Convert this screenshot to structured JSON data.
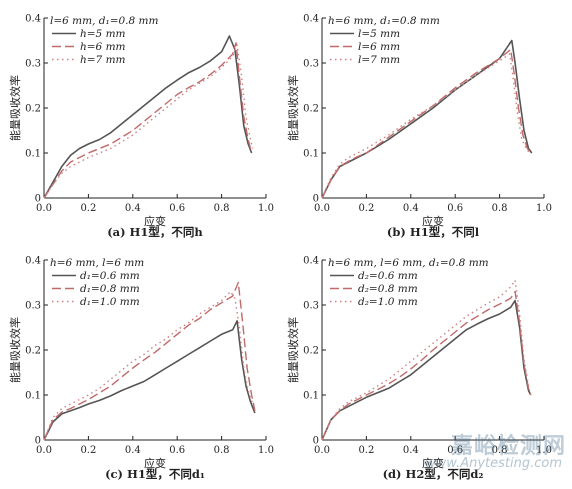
{
  "figure": {
    "watermark_cn": "嘉峪检测网",
    "watermark_en": "www.Anytesting.com"
  },
  "chart_data": [
    {
      "type": "line",
      "caption": "(a) H1型，不同h",
      "xlabel": "应变",
      "ylabel": "能量吸收效率",
      "xlim": [
        0,
        1.0
      ],
      "ylim": [
        0,
        0.4
      ],
      "xticks": [
        "0.0",
        "0.2",
        "0.4",
        "0.6",
        "0.8",
        "1.0"
      ],
      "yticks": [
        "0",
        "0.1",
        "0.2",
        "0.3",
        "0.4"
      ],
      "legend_title": "l=6 mm, d₁=0.8 mm",
      "legend_position": "top-left",
      "series": [
        {
          "name": "h=5 mm",
          "style": "solid",
          "color": "#555555",
          "x": [
            0,
            0.04,
            0.08,
            0.12,
            0.16,
            0.2,
            0.25,
            0.3,
            0.35,
            0.4,
            0.45,
            0.5,
            0.55,
            0.6,
            0.65,
            0.7,
            0.75,
            0.8,
            0.835,
            0.86,
            0.88,
            0.9,
            0.92,
            0.935
          ],
          "y": [
            0,
            0.035,
            0.07,
            0.095,
            0.11,
            0.12,
            0.13,
            0.145,
            0.165,
            0.185,
            0.205,
            0.225,
            0.245,
            0.262,
            0.278,
            0.29,
            0.305,
            0.325,
            0.36,
            0.33,
            0.25,
            0.16,
            0.12,
            0.1
          ]
        },
        {
          "name": "h=6 mm",
          "style": "dashed",
          "color": "#c06a6a",
          "x": [
            0,
            0.04,
            0.08,
            0.12,
            0.16,
            0.2,
            0.25,
            0.3,
            0.35,
            0.4,
            0.45,
            0.5,
            0.55,
            0.6,
            0.65,
            0.7,
            0.75,
            0.8,
            0.85,
            0.865,
            0.88,
            0.9,
            0.92,
            0.935
          ],
          "y": [
            0,
            0.03,
            0.06,
            0.08,
            0.09,
            0.1,
            0.11,
            0.12,
            0.135,
            0.15,
            0.17,
            0.19,
            0.21,
            0.23,
            0.245,
            0.258,
            0.275,
            0.295,
            0.32,
            0.345,
            0.27,
            0.18,
            0.13,
            0.1
          ]
        },
        {
          "name": "h=7 mm",
          "style": "dotted",
          "color": "#d08080",
          "x": [
            0,
            0.04,
            0.08,
            0.12,
            0.16,
            0.2,
            0.25,
            0.3,
            0.35,
            0.4,
            0.45,
            0.5,
            0.55,
            0.6,
            0.65,
            0.7,
            0.75,
            0.8,
            0.85,
            0.87,
            0.89,
            0.91,
            0.93,
            0.94
          ],
          "y": [
            0,
            0.03,
            0.055,
            0.07,
            0.08,
            0.09,
            0.1,
            0.11,
            0.125,
            0.14,
            0.16,
            0.18,
            0.2,
            0.22,
            0.24,
            0.255,
            0.27,
            0.29,
            0.315,
            0.34,
            0.27,
            0.18,
            0.13,
            0.11
          ]
        }
      ]
    },
    {
      "type": "line",
      "caption": "(b) H1型，不同l",
      "xlabel": "应变",
      "ylabel": "能量吸收效率",
      "xlim": [
        0,
        1.0
      ],
      "ylim": [
        0,
        0.4
      ],
      "xticks": [
        "0.0",
        "0.2",
        "0.4",
        "0.6",
        "0.8",
        "1.0"
      ],
      "yticks": [
        "0",
        "0.1",
        "0.2",
        "0.3",
        "0.4"
      ],
      "legend_title": "h=6 mm, d₁=0.8 mm",
      "legend_position": "top-left",
      "series": [
        {
          "name": "l=5 mm",
          "style": "solid",
          "color": "#555555",
          "x": [
            0,
            0.04,
            0.08,
            0.12,
            0.16,
            0.2,
            0.3,
            0.4,
            0.5,
            0.6,
            0.7,
            0.8,
            0.855,
            0.87,
            0.89,
            0.91,
            0.93,
            0.945
          ],
          "y": [
            0,
            0.04,
            0.07,
            0.08,
            0.09,
            0.1,
            0.13,
            0.165,
            0.2,
            0.24,
            0.275,
            0.31,
            0.35,
            0.3,
            0.22,
            0.15,
            0.11,
            0.1
          ]
        },
        {
          "name": "l=6 mm",
          "style": "dashed",
          "color": "#c06a6a",
          "x": [
            0,
            0.04,
            0.08,
            0.12,
            0.16,
            0.2,
            0.3,
            0.4,
            0.5,
            0.6,
            0.7,
            0.8,
            0.85,
            0.865,
            0.885,
            0.905,
            0.925,
            0.94
          ],
          "y": [
            0,
            0.04,
            0.07,
            0.082,
            0.092,
            0.1,
            0.135,
            0.17,
            0.205,
            0.245,
            0.28,
            0.31,
            0.33,
            0.28,
            0.2,
            0.14,
            0.11,
            0.1
          ]
        },
        {
          "name": "l=7 mm",
          "style": "dotted",
          "color": "#d08080",
          "x": [
            0,
            0.04,
            0.08,
            0.12,
            0.16,
            0.2,
            0.3,
            0.4,
            0.5,
            0.6,
            0.7,
            0.8,
            0.845,
            0.86,
            0.88,
            0.9,
            0.92,
            0.935
          ],
          "y": [
            0,
            0.045,
            0.075,
            0.09,
            0.1,
            0.11,
            0.14,
            0.175,
            0.205,
            0.24,
            0.275,
            0.305,
            0.32,
            0.27,
            0.19,
            0.13,
            0.11,
            0.1
          ]
        }
      ]
    },
    {
      "type": "line",
      "caption": "(c) H1型，不同d₁",
      "xlabel": "应变",
      "ylabel": "能量吸收效率",
      "xlim": [
        0,
        1.0
      ],
      "ylim": [
        0,
        0.4
      ],
      "xticks": [
        "0.0",
        "0.2",
        "0.4",
        "0.6",
        "0.8",
        "1.0"
      ],
      "yticks": [
        "0",
        "0.1",
        "0.2",
        "0.3",
        "0.4"
      ],
      "legend_title": "h=6 mm, l=6 mm",
      "legend_position": "top-left",
      "series": [
        {
          "name": "d₁=0.6 mm",
          "style": "solid",
          "color": "#555555",
          "x": [
            0,
            0.04,
            0.08,
            0.12,
            0.16,
            0.2,
            0.25,
            0.3,
            0.35,
            0.4,
            0.45,
            0.5,
            0.55,
            0.6,
            0.65,
            0.7,
            0.75,
            0.8,
            0.85,
            0.87,
            0.89,
            0.91,
            0.93,
            0.95
          ],
          "y": [
            0,
            0.04,
            0.058,
            0.065,
            0.072,
            0.08,
            0.088,
            0.098,
            0.11,
            0.12,
            0.13,
            0.145,
            0.16,
            0.175,
            0.19,
            0.205,
            0.22,
            0.235,
            0.245,
            0.265,
            0.18,
            0.12,
            0.085,
            0.06
          ]
        },
        {
          "name": "d₁=0.8 mm",
          "style": "dashed",
          "color": "#c06a6a",
          "x": [
            0,
            0.04,
            0.08,
            0.12,
            0.16,
            0.2,
            0.25,
            0.3,
            0.35,
            0.4,
            0.45,
            0.5,
            0.55,
            0.6,
            0.65,
            0.7,
            0.75,
            0.8,
            0.85,
            0.875,
            0.895,
            0.915,
            0.935,
            0.95
          ],
          "y": [
            0,
            0.045,
            0.062,
            0.07,
            0.08,
            0.09,
            0.105,
            0.12,
            0.14,
            0.16,
            0.178,
            0.195,
            0.215,
            0.235,
            0.255,
            0.27,
            0.29,
            0.305,
            0.32,
            0.35,
            0.26,
            0.16,
            0.1,
            0.065
          ]
        },
        {
          "name": "d₁=1.0 mm",
          "style": "dotted",
          "color": "#d08080",
          "x": [
            0,
            0.04,
            0.08,
            0.12,
            0.16,
            0.2,
            0.25,
            0.3,
            0.35,
            0.4,
            0.45,
            0.5,
            0.55,
            0.6,
            0.65,
            0.7,
            0.75,
            0.8,
            0.84,
            0.86,
            0.88,
            0.9,
            0.92,
            0.94
          ],
          "y": [
            0,
            0.05,
            0.07,
            0.08,
            0.09,
            0.1,
            0.115,
            0.135,
            0.155,
            0.175,
            0.19,
            0.21,
            0.225,
            0.245,
            0.26,
            0.28,
            0.295,
            0.31,
            0.33,
            0.315,
            0.25,
            0.16,
            0.11,
            0.08
          ]
        }
      ]
    },
    {
      "type": "line",
      "caption": "(d) H2型，不同d₂",
      "xlabel": "应变",
      "ylabel": "能量吸收效率",
      "xlim": [
        0,
        1.0
      ],
      "ylim": [
        0,
        0.4
      ],
      "xticks": [
        "0.0",
        "0.2",
        "0.4",
        "0.6",
        "0.8",
        "1.0"
      ],
      "yticks": [
        "0",
        "0.1",
        "0.2",
        "0.3",
        "0.4"
      ],
      "legend_title": "h=6 mm, l=6 mm, d₁=0.8 mm",
      "legend_position": "top-left",
      "series": [
        {
          "name": "d₂=0.6 mm",
          "style": "solid",
          "color": "#555555",
          "x": [
            0,
            0.04,
            0.08,
            0.12,
            0.16,
            0.2,
            0.25,
            0.3,
            0.35,
            0.4,
            0.45,
            0.5,
            0.55,
            0.6,
            0.65,
            0.7,
            0.75,
            0.8,
            0.85,
            0.87,
            0.89,
            0.91,
            0.93,
            0.94
          ],
          "y": [
            0,
            0.045,
            0.065,
            0.075,
            0.085,
            0.095,
            0.105,
            0.115,
            0.13,
            0.145,
            0.165,
            0.185,
            0.205,
            0.225,
            0.245,
            0.258,
            0.27,
            0.28,
            0.295,
            0.31,
            0.25,
            0.16,
            0.11,
            0.1
          ]
        },
        {
          "name": "d₂=0.8 mm",
          "style": "dashed",
          "color": "#c06a6a",
          "x": [
            0,
            0.04,
            0.08,
            0.12,
            0.16,
            0.2,
            0.25,
            0.3,
            0.35,
            0.4,
            0.45,
            0.5,
            0.55,
            0.6,
            0.65,
            0.7,
            0.75,
            0.8,
            0.85,
            0.87,
            0.89,
            0.91,
            0.93,
            0.94
          ],
          "y": [
            0,
            0.045,
            0.065,
            0.08,
            0.09,
            0.1,
            0.112,
            0.125,
            0.14,
            0.158,
            0.178,
            0.2,
            0.22,
            0.24,
            0.26,
            0.275,
            0.29,
            0.302,
            0.315,
            0.33,
            0.26,
            0.17,
            0.115,
            0.1
          ]
        },
        {
          "name": "d₂=1.0 mm",
          "style": "dotted",
          "color": "#d08080",
          "x": [
            0,
            0.04,
            0.08,
            0.12,
            0.16,
            0.2,
            0.25,
            0.3,
            0.35,
            0.4,
            0.45,
            0.5,
            0.55,
            0.6,
            0.65,
            0.7,
            0.75,
            0.8,
            0.85,
            0.87,
            0.89,
            0.91,
            0.93,
            0.94
          ],
          "y": [
            0,
            0.045,
            0.07,
            0.085,
            0.095,
            0.105,
            0.12,
            0.135,
            0.155,
            0.175,
            0.195,
            0.215,
            0.235,
            0.255,
            0.275,
            0.29,
            0.305,
            0.318,
            0.34,
            0.355,
            0.28,
            0.18,
            0.12,
            0.1
          ]
        }
      ]
    }
  ]
}
